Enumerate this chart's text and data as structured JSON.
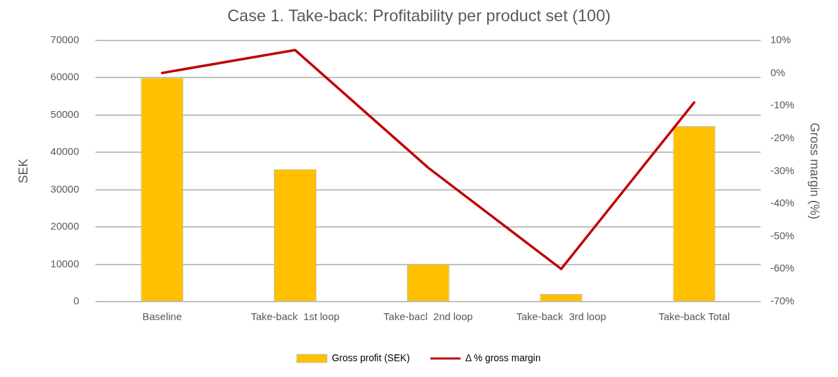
{
  "chart_data": {
    "type": "bar",
    "title": "Case 1. Take-back: Profitability per product set (100)",
    "ylabel": "SEK",
    "y2label": "Gross margin (%)",
    "categories": [
      "Baseline",
      "Take-back  1st loop",
      "Take-bacl  2nd loop",
      "Take-back  3rd loop",
      "Take-back Total"
    ],
    "series": [
      {
        "name": "Gross profit (SEK)",
        "color": "#ffc000",
        "values": [
          60000,
          35500,
          10000,
          2000,
          47000
        ]
      },
      {
        "name": "Δ % gross margin",
        "type": "line",
        "axis": "y2",
        "color": "#c00000",
        "values": [
          0,
          7,
          -29,
          -60,
          -9
        ]
      }
    ],
    "ylim": [
      0,
      70000
    ],
    "yticks": [
      0,
      10000,
      20000,
      30000,
      40000,
      50000,
      60000,
      70000
    ],
    "y2lim": [
      -70,
      10
    ],
    "y2ticks": [
      {
        "value": -70,
        "label": "-70%"
      },
      {
        "value": -60,
        "label": "-60%"
      },
      {
        "value": -50,
        "label": "-50%"
      },
      {
        "value": -40,
        "label": "-40%"
      },
      {
        "value": -30,
        "label": "-30%"
      },
      {
        "value": -20,
        "label": "-20%"
      },
      {
        "value": -10,
        "label": "-10%"
      },
      {
        "value": 0,
        "label": "0%"
      },
      {
        "value": 10,
        "label": "10%"
      }
    ],
    "grid": "y",
    "legend": "bottom",
    "marker": "none",
    "line_style": "solid"
  }
}
